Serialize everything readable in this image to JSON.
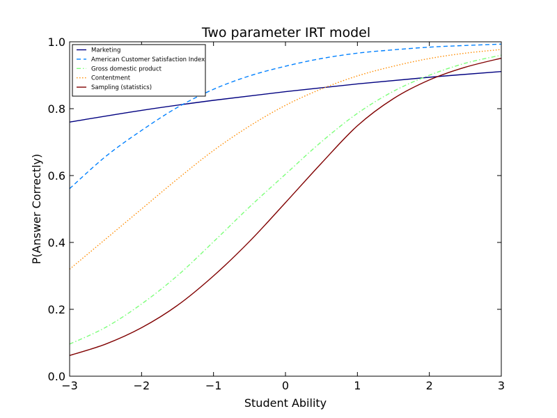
{
  "chart_data": {
    "type": "line",
    "title": "Two parameter IRT model",
    "xlabel": "Student Ability",
    "ylabel": "P(Answer Correctly)",
    "xlim": [
      -3,
      3
    ],
    "ylim": [
      0,
      1
    ],
    "x_ticks": [
      -3,
      -2,
      -1,
      0,
      1,
      2,
      3
    ],
    "x_tick_labels": [
      "−3",
      "−2",
      "−1",
      "0",
      "1",
      "2",
      "3"
    ],
    "y_ticks": [
      0,
      0.2,
      0.4,
      0.6,
      0.8,
      1.0
    ],
    "y_tick_labels": [
      "0.0",
      "0.2",
      "0.4",
      "0.6",
      "0.8",
      "1.0"
    ],
    "grid": false,
    "legend_position": "top-left",
    "series": [
      {
        "name": "Marketing",
        "color": "#000080",
        "dash": "solid",
        "x": [
          -3,
          -2,
          -1,
          0,
          1,
          2,
          3
        ],
        "y": [
          0.76,
          0.795,
          0.825,
          0.851,
          0.874,
          0.894,
          0.911
        ]
      },
      {
        "name": "American Customer Satisfaction Index",
        "color": "#0080ff",
        "dash": "dashed",
        "x": [
          -3,
          -2.5,
          -2,
          -1.5,
          -1,
          -0.5,
          0,
          0.5,
          1,
          1.5,
          2,
          2.5,
          3
        ],
        "y": [
          0.561,
          0.657,
          0.735,
          0.804,
          0.858,
          0.898,
          0.927,
          0.95,
          0.966,
          0.976,
          0.984,
          0.989,
          0.993
        ]
      },
      {
        "name": "Gross domestic product",
        "color": "#7dff7a",
        "dash": "dashdot",
        "x": [
          -3,
          -2.5,
          -2,
          -1.5,
          -1,
          -0.5,
          0,
          0.5,
          1,
          1.5,
          2,
          2.5,
          3
        ],
        "y": [
          0.096,
          0.146,
          0.216,
          0.301,
          0.402,
          0.506,
          0.604,
          0.701,
          0.786,
          0.852,
          0.9,
          0.936,
          0.96
        ]
      },
      {
        "name": "Contentment",
        "color": "#ff8c00",
        "dash": "dotted",
        "x": [
          -3,
          -2.5,
          -2,
          -1.5,
          -1,
          -0.5,
          0,
          0.5,
          1,
          1.5,
          2,
          2.5,
          3
        ],
        "y": [
          0.32,
          0.41,
          0.5,
          0.59,
          0.675,
          0.748,
          0.81,
          0.859,
          0.898,
          0.927,
          0.95,
          0.966,
          0.977
        ]
      },
      {
        "name": "Sampling (statistics)",
        "color": "#800000",
        "dash": "solid",
        "x": [
          -3,
          -2.5,
          -2,
          -1.5,
          -1,
          -0.5,
          0,
          0.5,
          1,
          1.5,
          2,
          2.5,
          3
        ],
        "y": [
          0.062,
          0.096,
          0.145,
          0.212,
          0.3,
          0.403,
          0.519,
          0.637,
          0.749,
          0.83,
          0.886,
          0.924,
          0.951
        ]
      }
    ]
  }
}
